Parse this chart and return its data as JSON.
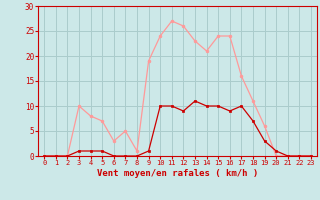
{
  "x": [
    0,
    1,
    2,
    3,
    4,
    5,
    6,
    7,
    8,
    9,
    10,
    11,
    12,
    13,
    14,
    15,
    16,
    17,
    18,
    19,
    20,
    21,
    22,
    23
  ],
  "y_mean": [
    0,
    0,
    0,
    1,
    1,
    1,
    0,
    0,
    0,
    1,
    10,
    10,
    9,
    11,
    10,
    10,
    9,
    10,
    7,
    3,
    1,
    0,
    0,
    0
  ],
  "y_gust": [
    0,
    0,
    0,
    10,
    8,
    7,
    3,
    5,
    1,
    19,
    24,
    27,
    26,
    23,
    21,
    24,
    24,
    16,
    11,
    6,
    0,
    0,
    0,
    0
  ],
  "bg_color": "#cce8e8",
  "grid_color": "#aacccc",
  "line_mean_color": "#cc0000",
  "line_gust_color": "#ff9999",
  "xlabel": "Vent moyen/en rafales ( km/h )",
  "ylim": [
    0,
    30
  ],
  "yticks": [
    0,
    5,
    10,
    15,
    20,
    25,
    30
  ],
  "xticks": [
    0,
    1,
    2,
    3,
    4,
    5,
    6,
    7,
    8,
    9,
    10,
    11,
    12,
    13,
    14,
    15,
    16,
    17,
    18,
    19,
    20,
    21,
    22,
    23
  ]
}
